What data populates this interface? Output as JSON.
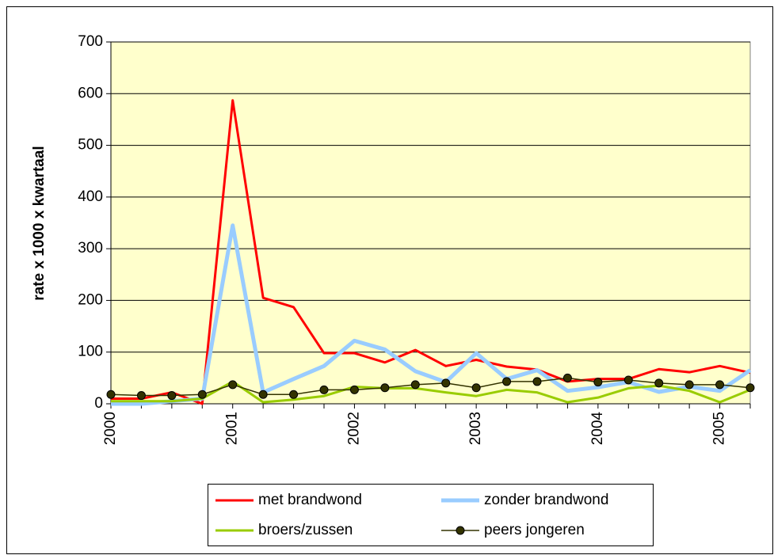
{
  "chart_data": {
    "type": "line",
    "ylabel": "rate x 1000 x kwartaal",
    "categories": [
      "2000",
      null,
      null,
      null,
      "2001",
      null,
      null,
      null,
      "2002",
      null,
      null,
      null,
      "2003",
      null,
      null,
      null,
      "2004",
      null,
      null,
      null,
      "2005",
      null
    ],
    "series": [
      {
        "name": "met brandwond",
        "color": "#ff0000",
        "values": [
          10,
          10,
          22,
          0,
          587,
          205,
          187,
          98,
          98,
          80,
          104,
          73,
          85,
          72,
          66,
          43,
          48,
          48,
          67,
          61,
          73,
          60
        ]
      },
      {
        "name": "zonder brandwond",
        "color": "#99ccff",
        "values": [
          0,
          0,
          5,
          10,
          345,
          22,
          48,
          73,
          122,
          105,
          63,
          42,
          98,
          48,
          65,
          25,
          32,
          42,
          23,
          33,
          25,
          65
        ]
      },
      {
        "name": "broers/zussen",
        "color": "#99cc00",
        "values": [
          5,
          5,
          5,
          10,
          43,
          3,
          8,
          15,
          33,
          30,
          30,
          22,
          15,
          27,
          22,
          3,
          12,
          30,
          35,
          25,
          3,
          27
        ]
      },
      {
        "name": "peers jongeren",
        "color": "#333300",
        "marker": true,
        "values": [
          18,
          16,
          16,
          18,
          37,
          18,
          18,
          27,
          27,
          31,
          37,
          40,
          31,
          43,
          43,
          50,
          42,
          46,
          40,
          37,
          37,
          31
        ]
      }
    ],
    "ylim": [
      0,
      700
    ],
    "yticks": [
      0,
      100,
      200,
      300,
      400,
      500,
      600,
      700
    ],
    "grid": true,
    "plot_background": "#ffffcc"
  }
}
